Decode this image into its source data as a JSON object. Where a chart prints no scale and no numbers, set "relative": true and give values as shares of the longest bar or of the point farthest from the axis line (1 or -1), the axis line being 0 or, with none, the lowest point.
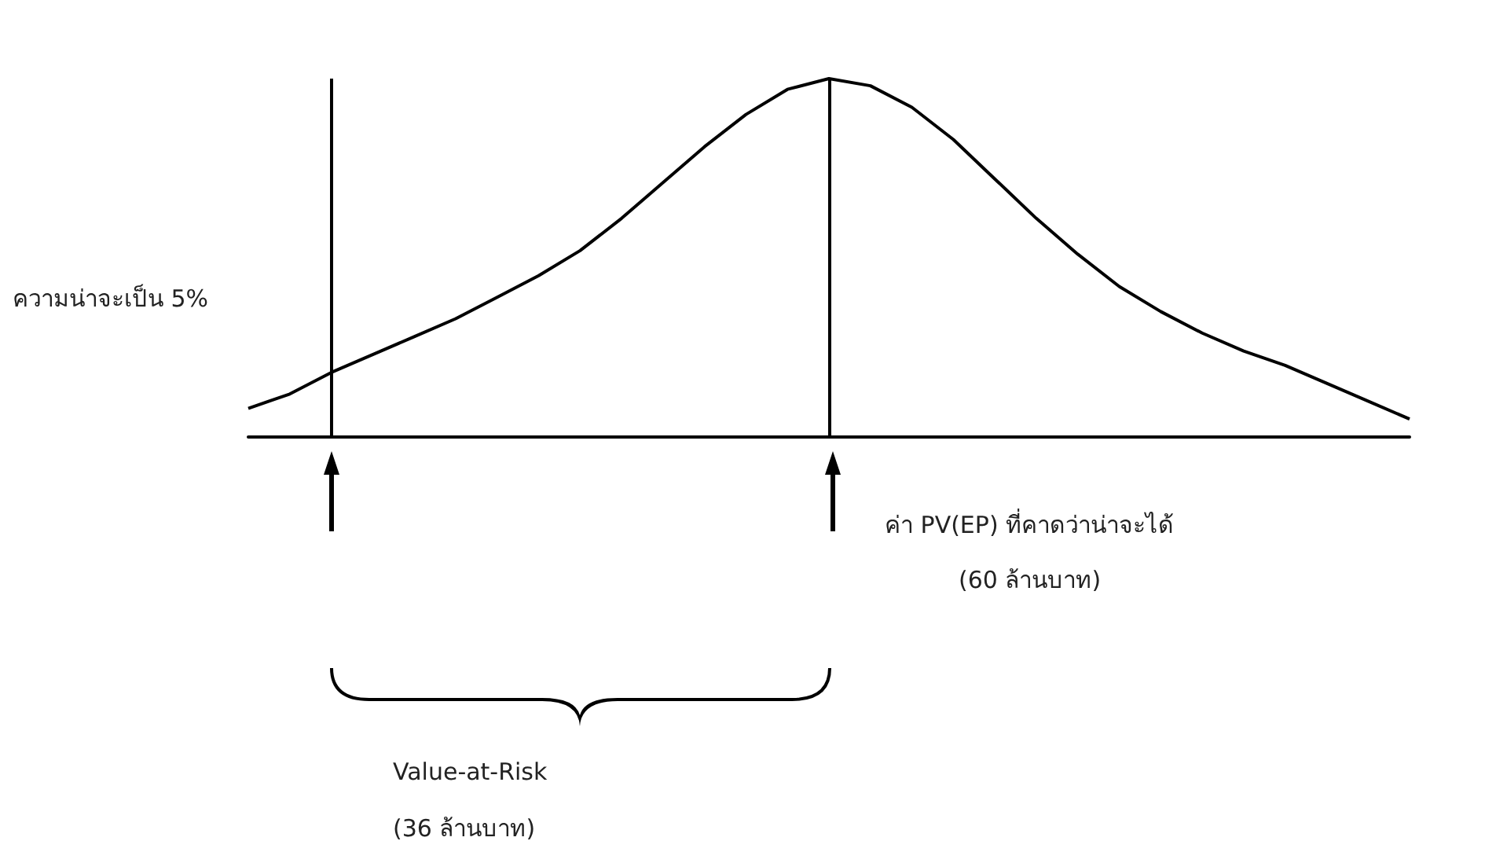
{
  "chart_data": {
    "type": "line",
    "relative": true,
    "color": "#000000",
    "marker": "none",
    "line_style": "solid",
    "grid": false,
    "categories": [
      null,
      null,
      null,
      null,
      null,
      null,
      null,
      null,
      null,
      null,
      null,
      null,
      null,
      null,
      null,
      null,
      null,
      null,
      null,
      null,
      null,
      null,
      null,
      null,
      null,
      null,
      null,
      null,
      null
    ],
    "values": [
      0.08,
      0.12,
      0.18,
      0.23,
      0.28,
      0.33,
      0.39,
      0.45,
      0.52,
      0.61,
      0.71,
      0.81,
      0.9,
      0.97,
      1,
      0.98,
      0.92,
      0.83,
      0.72,
      0.61,
      0.51,
      0.42,
      0.35,
      0.29,
      0.24,
      0.2,
      0.15,
      0.1,
      0.05
    ],
    "annotations": [
      "ความน่าจะเป็น 5%",
      "ค่า PV(EP) ที่คาดว่าน่าจะได้",
      "(60 ล้านบาท)",
      "Value-at-Risk",
      "(36 ล้านบาท)"
    ]
  }
}
